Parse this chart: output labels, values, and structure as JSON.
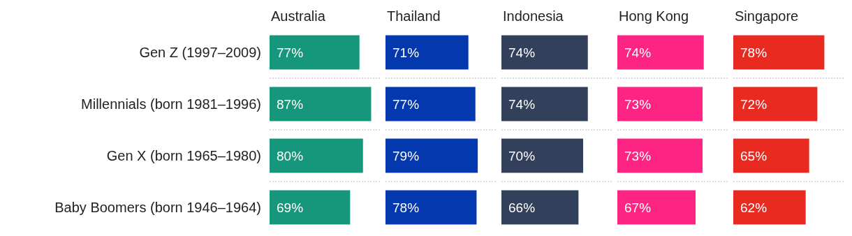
{
  "chart_data": [
    {
      "type": "bar",
      "orientation": "horizontal",
      "title": "Australia",
      "categories": [
        "Gen Z (1997–2009)",
        "Millennials (born 1981–1996)",
        "Gen X (born 1965–1980)",
        "Baby Boomers (born 1946–1964)"
      ],
      "values": [
        77,
        87,
        80,
        69
      ],
      "value_labels": [
        "77%",
        "87%",
        "80%",
        "69%"
      ],
      "color": "#16967a",
      "grid": "y",
      "tick_labels": "y"
    },
    {
      "type": "bar",
      "orientation": "horizontal",
      "title": "Thailand",
      "categories": [
        null,
        null,
        null,
        null
      ],
      "values": [
        71,
        77,
        79,
        78
      ],
      "value_labels": [
        "71%",
        "77%",
        "79%",
        "78%"
      ],
      "color": "#0338ae",
      "grid": "y",
      "tick_labels": false
    },
    {
      "type": "bar",
      "orientation": "horizontal",
      "title": "Indonesia",
      "categories": [
        null,
        null,
        null,
        null
      ],
      "values": [
        74,
        74,
        70,
        66
      ],
      "value_labels": [
        "74%",
        "74%",
        "70%",
        "66%"
      ],
      "color": "#33405c",
      "grid": "y",
      "tick_labels": false
    },
    {
      "type": "bar",
      "orientation": "horizontal",
      "title": "Hong Kong",
      "categories": [
        null,
        null,
        null,
        null
      ],
      "values": [
        74,
        73,
        73,
        67
      ],
      "value_labels": [
        "74%",
        "73%",
        "73%",
        "67%"
      ],
      "color": "#fe2484",
      "grid": "y",
      "tick_labels": false
    },
    {
      "type": "bar",
      "orientation": "horizontal",
      "title": "Singapore",
      "categories": [
        null,
        null,
        null,
        null
      ],
      "values": [
        78,
        72,
        65,
        62
      ],
      "value_labels": [
        "78%",
        "72%",
        "65%",
        "62%"
      ],
      "color": "#e82a20",
      "grid": "y",
      "tick_labels": false
    }
  ]
}
